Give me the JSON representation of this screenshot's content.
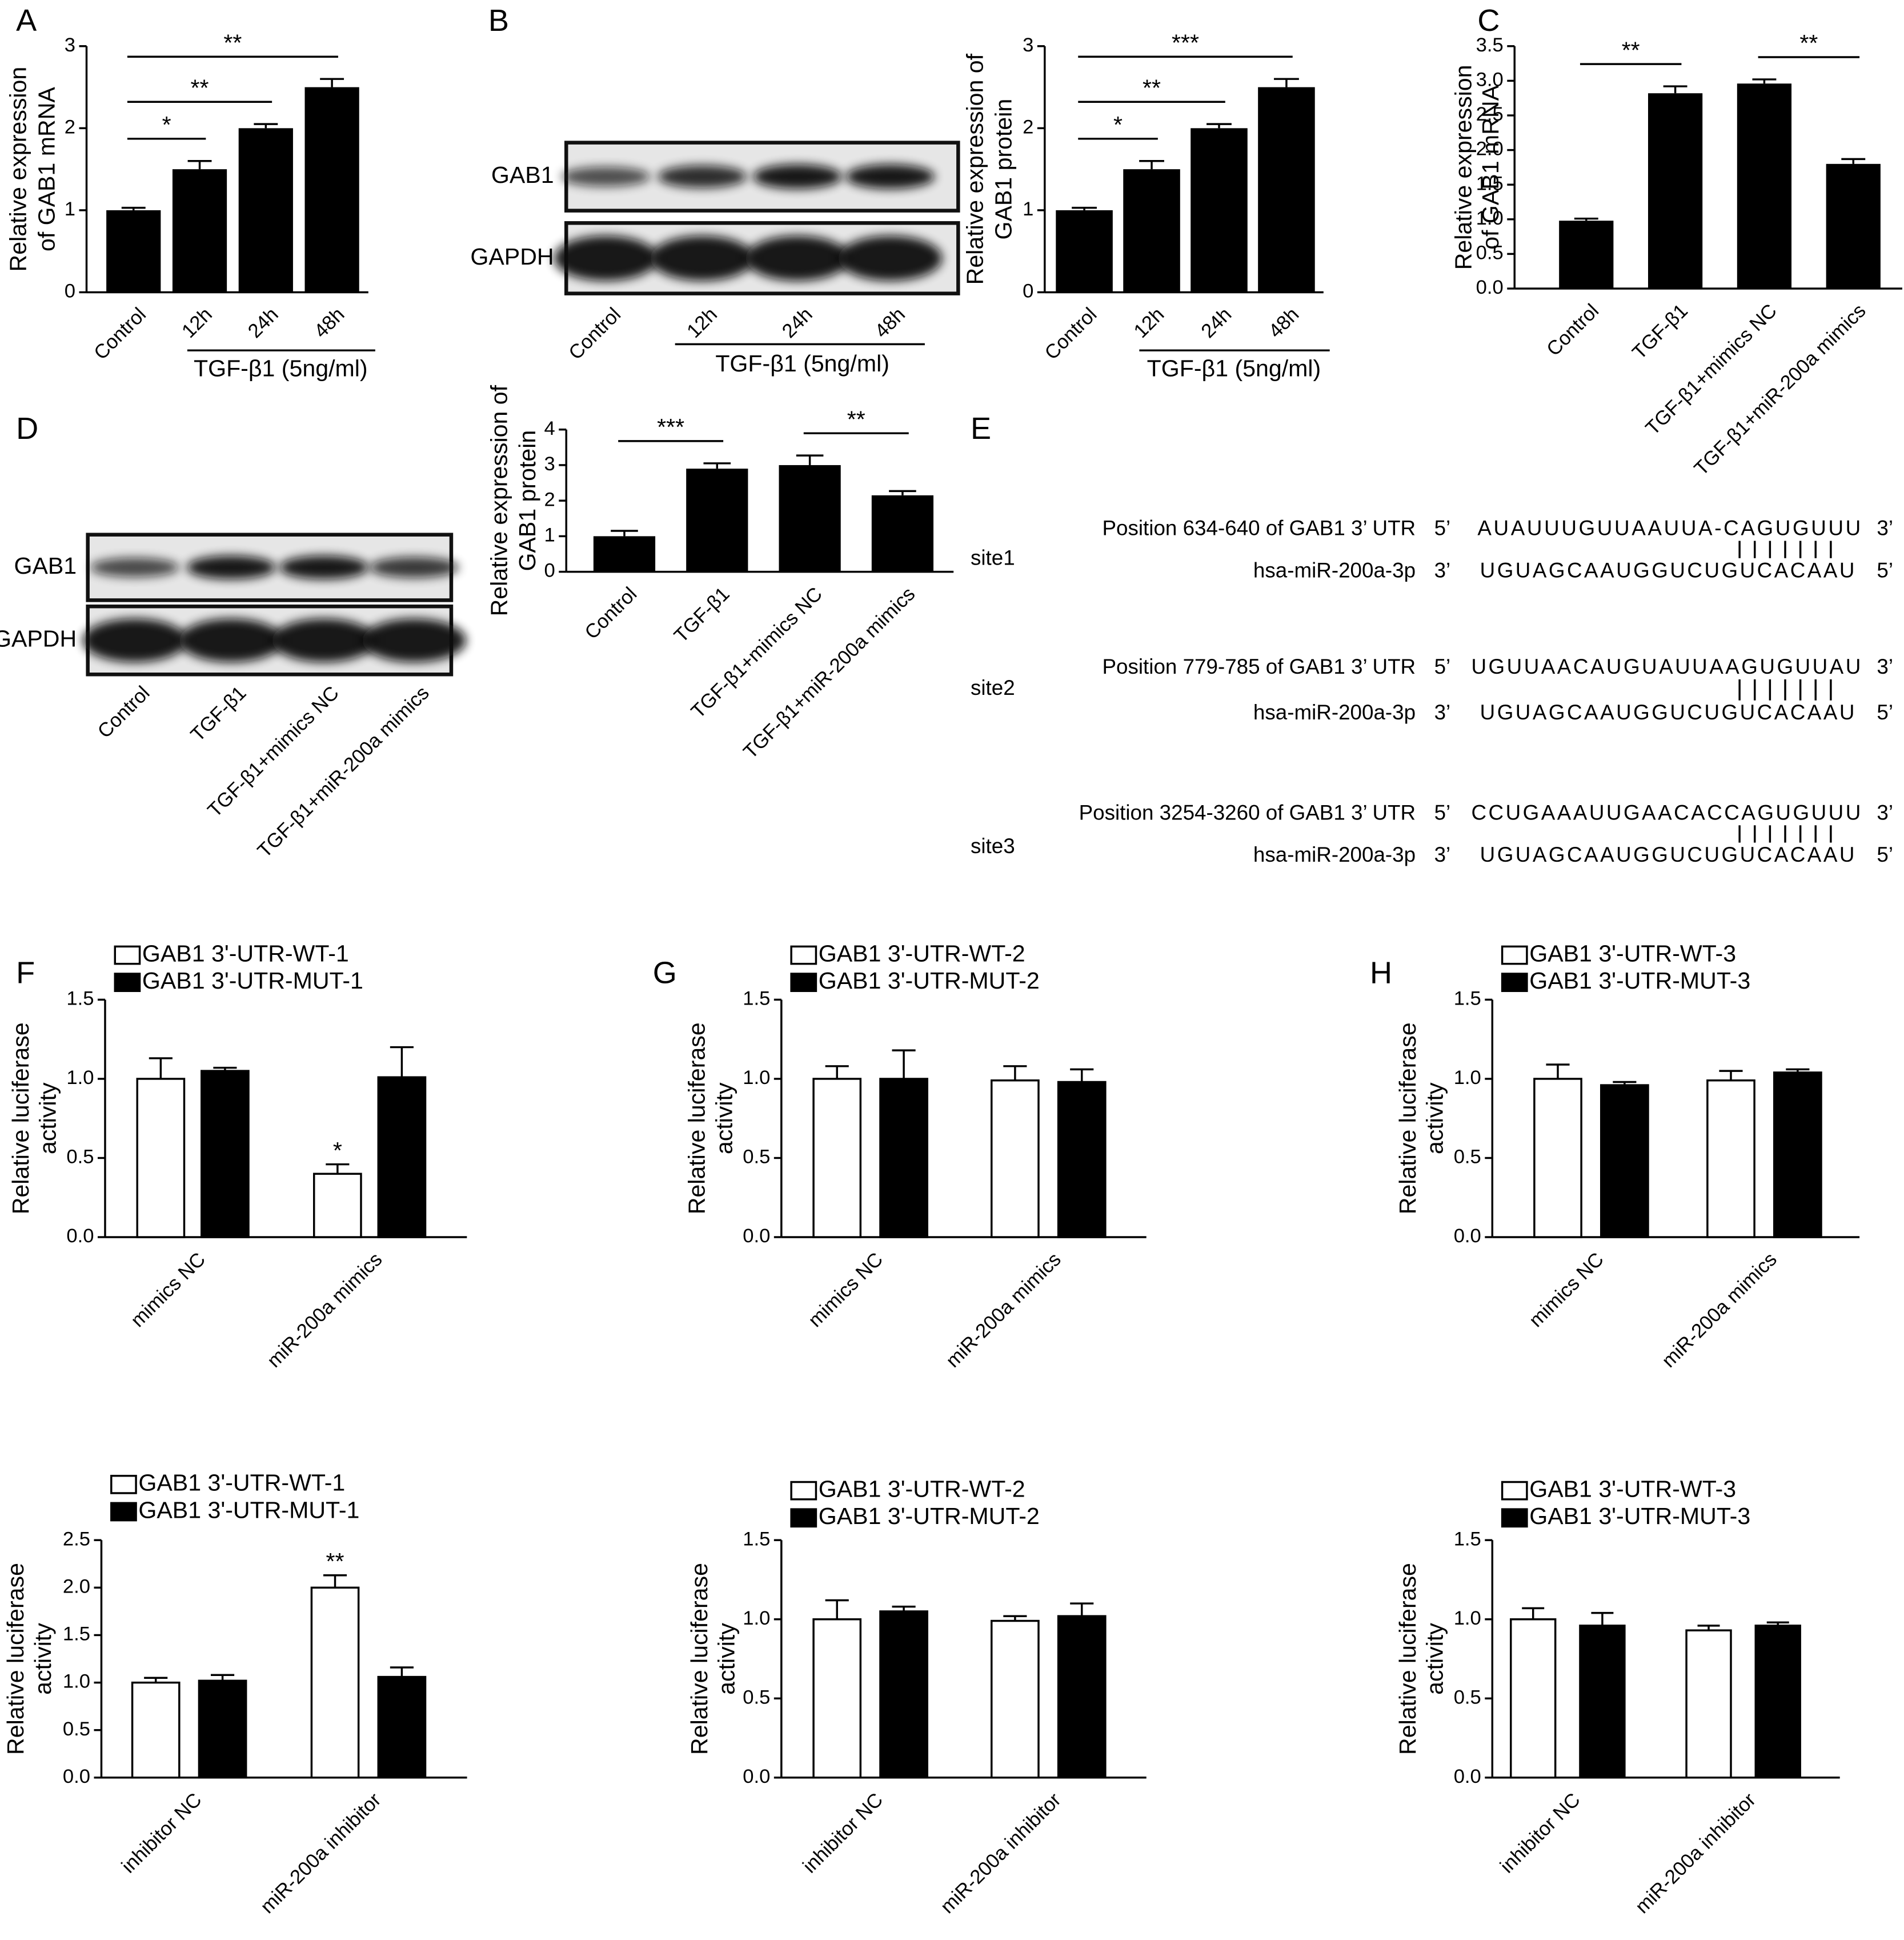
{
  "panel_labels": [
    "A",
    "B",
    "C",
    "D",
    "E",
    "F",
    "G",
    "H"
  ],
  "chart_data": [
    {
      "type": "bar",
      "ylabel": [
        "Relative expression",
        "of GAB1 mRNA"
      ],
      "categories": [
        "Control",
        "12h",
        "24h",
        "48h"
      ],
      "values": [
        1.0,
        1.5,
        2.0,
        2.5
      ],
      "errors": [
        0.03,
        0.1,
        0.05,
        0.1
      ],
      "color": "#000000",
      "ylim": [
        0,
        3
      ],
      "yticks": [
        0,
        1,
        2,
        3
      ],
      "group_label": "TGF-β1 (5ng/ml)",
      "significance": [
        {
          "from": 0,
          "to": 1,
          "label": "*"
        },
        {
          "from": 0,
          "to": 2,
          "label": "**"
        },
        {
          "from": 0,
          "to": 3,
          "label": "**"
        }
      ]
    },
    {
      "type": "bar",
      "ylabel": [
        "Relative expression of",
        "GAB1 protein"
      ],
      "categories": [
        "Control",
        "12h",
        "24h",
        "48h"
      ],
      "values": [
        1.0,
        1.5,
        2.0,
        2.5
      ],
      "errors": [
        0.03,
        0.1,
        0.05,
        0.1
      ],
      "color": "#000000",
      "ylim": [
        0,
        3
      ],
      "yticks": [
        0,
        1,
        2,
        3
      ],
      "group_label": "TGF-β1 (5ng/ml)",
      "significance": [
        {
          "from": 0,
          "to": 1,
          "label": "*"
        },
        {
          "from": 0,
          "to": 2,
          "label": "**"
        },
        {
          "from": 0,
          "to": 3,
          "label": "***"
        }
      ]
    },
    {
      "type": "bar",
      "ylabel": [
        "Relative expression",
        "of GAB1 mRNA"
      ],
      "categories": [
        "Control",
        "TGF-β1",
        "TGF-β1+mimics NC",
        "TGF-β1+miR-200a mimics"
      ],
      "values": [
        0.98,
        2.82,
        2.96,
        1.8
      ],
      "errors": [
        0.03,
        0.1,
        0.06,
        0.07
      ],
      "color": "#000000",
      "ylim": [
        0,
        3.5
      ],
      "yticks": [
        {
          "value": 0,
          "label": "0.0"
        },
        0.5,
        {
          "value": 1,
          "label": "1.0"
        },
        1.5,
        {
          "value": 2,
          "label": "2.0"
        },
        2.5,
        {
          "value": 3,
          "label": "3.0"
        },
        3.5
      ],
      "significance": [
        {
          "from": 0,
          "to": 1,
          "label": "**"
        },
        {
          "from": 2,
          "to": 3,
          "label": "**"
        }
      ]
    },
    {
      "type": "bar",
      "ylabel": [
        "Relative expression of",
        "GAB1 protein"
      ],
      "categories": [
        "Control",
        "TGF-β1",
        "TGF-β1+mimics NC",
        "TGF-β1+miR-200a mimics"
      ],
      "values": [
        1.0,
        2.9,
        3.0,
        2.15
      ],
      "errors": [
        0.15,
        0.15,
        0.27,
        0.12
      ],
      "color": "#000000",
      "ylim": [
        0,
        4
      ],
      "yticks": [
        0,
        1,
        2,
        3,
        4
      ],
      "significance": [
        {
          "from": 0,
          "to": 1,
          "label": "***"
        },
        {
          "from": 2,
          "to": 3,
          "label": "**"
        }
      ]
    },
    {
      "type": "grouped_bar",
      "ylabel": [
        "Relative luciferase",
        "activity"
      ],
      "categories": [
        "mimics NC",
        "miR-200a mimics"
      ],
      "series": [
        {
          "name": "GAB1 3'-UTR-WT-1",
          "color": "#ffffff",
          "values": [
            1.0,
            0.4
          ],
          "errors": [
            0.13,
            0.06
          ]
        },
        {
          "name": "GAB1 3'-UTR-MUT-1",
          "color": "#000000",
          "values": [
            1.05,
            1.01
          ],
          "errors": [
            0.02,
            0.19
          ]
        }
      ],
      "ylim": [
        0,
        1.5
      ],
      "yticks": [
        {
          "value": 0,
          "label": "0.0"
        },
        0.5,
        {
          "value": 1,
          "label": "1.0"
        },
        1.5
      ],
      "annotations": [
        {
          "series": 0,
          "index": 1,
          "label": "*"
        }
      ]
    },
    {
      "type": "grouped_bar",
      "ylabel": [
        "Relative luciferase",
        "activity"
      ],
      "categories": [
        "mimics NC",
        "miR-200a mimics"
      ],
      "series": [
        {
          "name": "GAB1 3'-UTR-WT-2",
          "color": "#ffffff",
          "values": [
            1.0,
            0.99
          ],
          "errors": [
            0.08,
            0.09
          ]
        },
        {
          "name": "GAB1 3'-UTR-MUT-2",
          "color": "#000000",
          "values": [
            1.0,
            0.98
          ],
          "errors": [
            0.18,
            0.08
          ]
        }
      ],
      "ylim": [
        0,
        1.5
      ],
      "yticks": [
        {
          "value": 0,
          "label": "0.0"
        },
        0.5,
        {
          "value": 1,
          "label": "1.0"
        },
        1.5
      ]
    },
    {
      "type": "grouped_bar",
      "ylabel": [
        "Relative luciferase",
        "activity"
      ],
      "categories": [
        "mimics NC",
        "miR-200a mimics"
      ],
      "series": [
        {
          "name": "GAB1 3'-UTR-WT-3",
          "color": "#ffffff",
          "values": [
            1.0,
            0.99
          ],
          "errors": [
            0.09,
            0.06
          ]
        },
        {
          "name": "GAB1 3'-UTR-MUT-3",
          "color": "#000000",
          "values": [
            0.96,
            1.04
          ],
          "errors": [
            0.02,
            0.02
          ]
        }
      ],
      "ylim": [
        0,
        1.5
      ],
      "yticks": [
        {
          "value": 0,
          "label": "0.0"
        },
        0.5,
        {
          "value": 1,
          "label": "1.0"
        },
        1.5
      ]
    },
    {
      "type": "grouped_bar",
      "ylabel": [
        "Relative luciferase",
        "activity"
      ],
      "categories": [
        "inhibitor NC",
        "miR-200a inhibitor"
      ],
      "series": [
        {
          "name": "GAB1 3'-UTR-WT-1",
          "color": "#ffffff",
          "values": [
            1.0,
            2.0
          ],
          "errors": [
            0.05,
            0.13
          ]
        },
        {
          "name": "GAB1 3'-UTR-MUT-1",
          "color": "#000000",
          "values": [
            1.02,
            1.06
          ],
          "errors": [
            0.06,
            0.1
          ]
        }
      ],
      "ylim": [
        0,
        2.5
      ],
      "yticks": [
        {
          "value": 0,
          "label": "0.0"
        },
        0.5,
        {
          "value": 1,
          "label": "1.0"
        },
        1.5,
        {
          "value": 2,
          "label": "2.0"
        },
        2.5
      ],
      "annotations": [
        {
          "series": 0,
          "index": 1,
          "label": "**"
        }
      ]
    },
    {
      "type": "grouped_bar",
      "ylabel": [
        "Relative luciferase",
        "activity"
      ],
      "categories": [
        "inhibitor NC",
        "miR-200a inhibitor"
      ],
      "series": [
        {
          "name": "GAB1 3'-UTR-WT-2",
          "color": "#ffffff",
          "values": [
            1.0,
            0.99
          ],
          "errors": [
            0.12,
            0.03
          ]
        },
        {
          "name": "GAB1 3'-UTR-MUT-2",
          "color": "#000000",
          "values": [
            1.05,
            1.02
          ],
          "errors": [
            0.03,
            0.08
          ]
        }
      ],
      "ylim": [
        0,
        1.5
      ],
      "yticks": [
        {
          "value": 0,
          "label": "0.0"
        },
        0.5,
        {
          "value": 1,
          "label": "1.0"
        },
        1.5
      ]
    },
    {
      "type": "grouped_bar",
      "ylabel": [
        "Relative luciferase",
        "activity"
      ],
      "categories": [
        "inhibitor NC",
        "miR-200a inhibitor"
      ],
      "series": [
        {
          "name": "GAB1 3'-UTR-WT-3",
          "color": "#ffffff",
          "values": [
            1.0,
            0.93
          ],
          "errors": [
            0.07,
            0.03
          ]
        },
        {
          "name": "GAB1 3'-UTR-MUT-3",
          "color": "#000000",
          "values": [
            0.96,
            0.96
          ],
          "errors": [
            0.08,
            0.02
          ]
        }
      ],
      "ylim": [
        0,
        1.5
      ],
      "yticks": [
        {
          "value": 0,
          "label": "0.0"
        },
        0.5,
        {
          "value": 1,
          "label": "1.0"
        },
        1.5
      ]
    }
  ],
  "blots": [
    {
      "rows": [
        "GAB1",
        "GAPDH"
      ],
      "lanes": [
        "Control",
        "12h",
        "24h",
        "48h"
      ],
      "group_label": "TGF-β1 (5ng/ml)"
    },
    {
      "rows": [
        "GAB1",
        "GAPDH"
      ],
      "lanes": [
        "Control",
        "TGF-β1",
        "TGF-β1+mimics NC",
        "TGF-β1+miR-200a mimics"
      ]
    }
  ],
  "alignment": {
    "sites": [
      {
        "site": "site1",
        "target_label": "Position 634-640 of GAB1 3’ UTR",
        "target_start": "5’",
        "target_seq": "AUAUUUGUUAAUUA-CAGUGUUU",
        "target_end": "3’",
        "mirna_label": "hsa-miR-200a-3p",
        "mirna_start": "3’",
        "mirna_seq": "UGUAGCAAUGGUCUGUCACAAU",
        "mirna_end": "5’"
      },
      {
        "site": "site2",
        "target_label": "Position 779-785 of GAB1 3’ UTR",
        "target_start": "5’",
        "target_seq": "UGUUAACAUGUAUUAAGUGUUAU",
        "target_end": "3’",
        "mirna_label": "hsa-miR-200a-3p",
        "mirna_start": "3’",
        "mirna_seq": "UGUAGCAAUGGUCUGUCACAAU",
        "mirna_end": "5’"
      },
      {
        "site": "site3",
        "target_label": "Position 3254-3260 of GAB1 3’ UTR",
        "target_start": "5’",
        "target_seq": "CCUGAAAUUGAACACCAGUGUUU",
        "target_end": "3’",
        "mirna_label": "hsa-miR-200a-3p",
        "mirna_start": "3’",
        "mirna_seq": "UGUAGCAAUGGUCUGUCACAAU",
        "mirna_end": "5’"
      }
    ]
  }
}
